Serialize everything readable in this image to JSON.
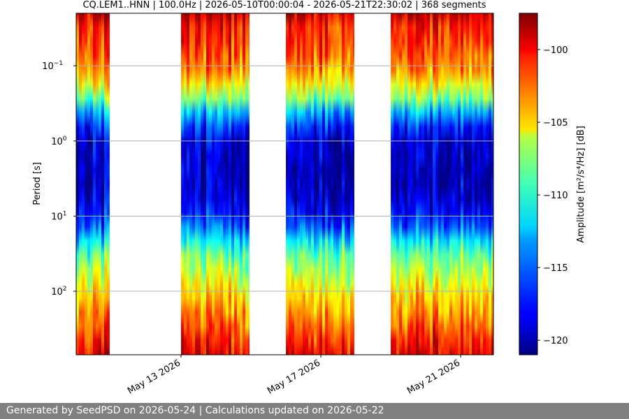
{
  "chart_data": {
    "type": "heatmap",
    "title": "CQ.LEM1..HNN | 100.0Hz | 2026-05-10T00:00:04 - 2026-05-21T22:30:02 | 368 segments",
    "ylabel": "Period [s]",
    "y_scale": "log",
    "y_inverted": true,
    "ylim": [
      0.02,
      700
    ],
    "y_ticks": [
      {
        "value": 0.1,
        "base": "10",
        "exp": "−1"
      },
      {
        "value": 1,
        "base": "10",
        "exp": "0"
      },
      {
        "value": 10,
        "base": "10",
        "exp": "1"
      },
      {
        "value": 100,
        "base": "10",
        "exp": "2"
      }
    ],
    "xlim": [
      "2026-05-10T00:00:04",
      "2026-05-21T22:30:02"
    ],
    "x_ticks": [
      {
        "value": "2026-05-13",
        "label": "May 13 2026"
      },
      {
        "value": "2026-05-17",
        "label": "May 17 2026"
      },
      {
        "value": "2026-05-21",
        "label": "May 21 2026"
      }
    ],
    "grid": "horizontal",
    "colormap": "jet",
    "colorbar": {
      "label": "Amplitude [m²/s⁴/Hz] [dB]",
      "range": [
        -121,
        -97.5
      ],
      "ticks": [
        -100,
        -105,
        -110,
        -115,
        -120
      ]
    },
    "data_segments": [
      [
        "2026-05-10T00:00:04",
        "2026-05-10T23:00:00"
      ],
      [
        "2026-05-13T00:00:00",
        "2026-05-14T23:00:00"
      ],
      [
        "2026-05-16T00:00:00",
        "2026-05-17T23:00:00"
      ],
      [
        "2026-05-19T00:00:00",
        "2026-05-21T22:30:02"
      ]
    ],
    "amplitude_profile": [
      {
        "period": 0.02,
        "db": -99
      },
      {
        "period": 0.03,
        "db": -101
      },
      {
        "period": 0.06,
        "db": -102
      },
      {
        "period": 0.12,
        "db": -104
      },
      {
        "period": 0.2,
        "db": -107
      },
      {
        "period": 0.3,
        "db": -110
      },
      {
        "period": 0.5,
        "db": -116
      },
      {
        "period": 1,
        "db": -119
      },
      {
        "period": 3,
        "db": -120
      },
      {
        "period": 7,
        "db": -119
      },
      {
        "period": 12,
        "db": -117
      },
      {
        "period": 20,
        "db": -113
      },
      {
        "period": 40,
        "db": -109
      },
      {
        "period": 100,
        "db": -106
      },
      {
        "period": 250,
        "db": -103
      },
      {
        "period": 700,
        "db": -100
      }
    ]
  },
  "footer": {
    "text": "Generated by SeedPSD on 2026-05-24 | Calculations updated on 2026-05-22"
  }
}
